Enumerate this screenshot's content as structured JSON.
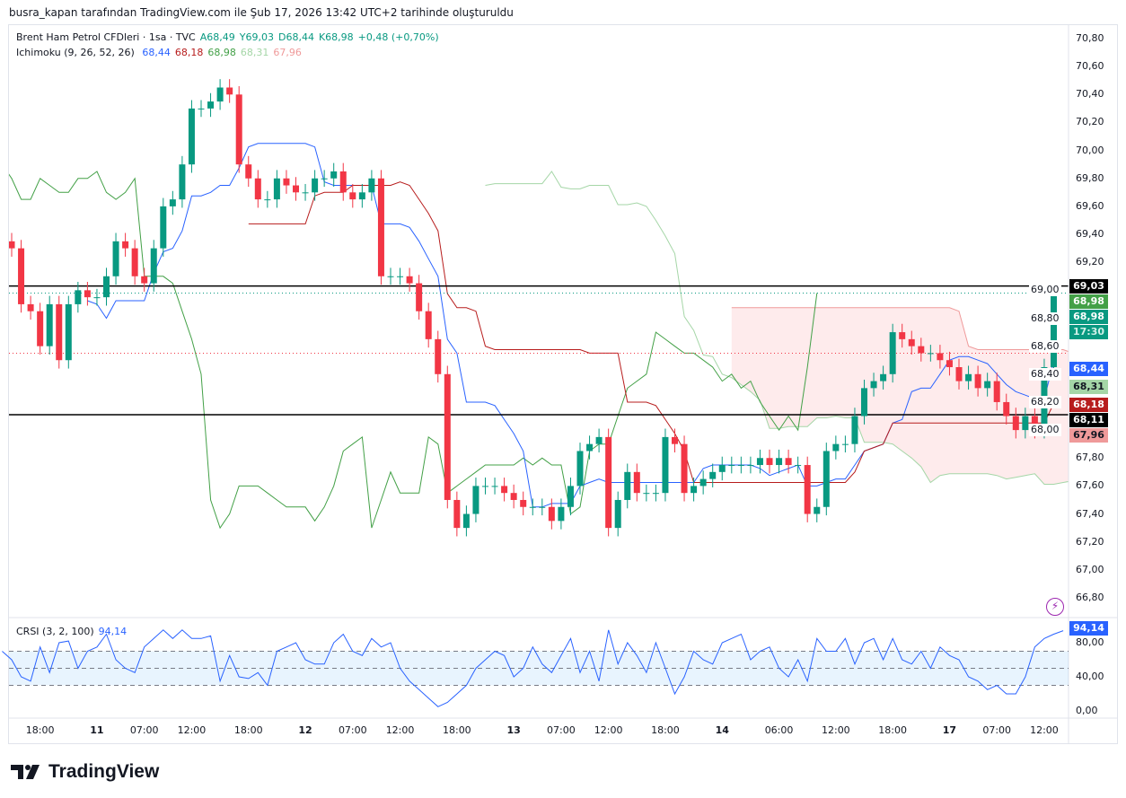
{
  "caption": "busra_kapan tarafından TradingView.com ile Şub 17, 2026 13:42 UTC+2 tarihinde oluşturuldu",
  "legend": {
    "symbol": "Brent Ham Petrol CFDleri · 1sa · TVC",
    "open": "A68,49",
    "high": "Y69,03",
    "low": "D68,44",
    "close": "K68,98",
    "change": "+0,48 (+0,70%)",
    "ichimoku_label": "Ichimoku (9, 26, 52, 26)",
    "ichimoku_values": [
      {
        "v": "68,44",
        "c": "#2962ff"
      },
      {
        "v": "68,18",
        "c": "#b71c1c"
      },
      {
        "v": "68,98",
        "c": "#43a047"
      },
      {
        "v": "68,31",
        "c": "#a5d6a7"
      },
      {
        "v": "67,96",
        "c": "#ef9a9a"
      }
    ],
    "crsi_label": "CRSI (3, 2, 100)",
    "crsi_value": "94,14"
  },
  "colors": {
    "up": "#089981",
    "down": "#f23645",
    "tenkan": "#2962ff",
    "kijun": "#b71c1c",
    "lagging": "#43a047",
    "spanA": "#a5d6a7",
    "spanB": "#ef9a9a",
    "crsi": "#2962ff"
  },
  "chart_data": {
    "type": "candlestick",
    "price_range": [
      66.8,
      70.8
    ],
    "ichimoku_params": [
      9,
      26,
      52,
      26
    ],
    "closes": [
      69.3,
      68.9,
      68.85,
      68.6,
      68.9,
      68.5,
      68.9,
      69.0,
      68.95,
      68.95,
      69.1,
      69.35,
      69.3,
      69.1,
      69.05,
      69.3,
      69.6,
      69.65,
      69.9,
      70.3,
      70.3,
      70.35,
      70.45,
      70.4,
      69.9,
      69.8,
      69.65,
      69.65,
      69.8,
      69.75,
      69.7,
      69.7,
      69.8,
      69.8,
      69.85,
      69.7,
      69.65,
      69.7,
      69.8,
      69.1,
      69.1,
      69.1,
      69.05,
      68.85,
      68.65,
      68.4,
      67.5,
      67.3,
      67.4,
      67.6,
      67.6,
      67.6,
      67.55,
      67.5,
      67.45,
      67.45,
      67.45,
      67.35,
      67.45,
      67.6,
      67.85,
      67.9,
      67.95,
      67.3,
      67.5,
      67.7,
      67.55,
      67.55,
      67.55,
      67.95,
      67.9,
      67.55,
      67.6,
      67.65,
      67.7,
      67.75,
      67.75,
      67.75,
      67.75,
      67.8,
      67.75,
      67.8,
      67.75,
      67.75,
      67.4,
      67.45,
      67.85,
      67.9,
      67.9,
      68.1,
      68.3,
      68.35,
      68.4,
      68.7,
      68.65,
      68.6,
      68.55,
      68.55,
      68.5,
      68.45,
      68.35,
      68.4,
      68.3,
      68.35,
      68.2,
      68.1,
      68.0,
      68.1,
      68.0,
      68.45,
      68.98
    ],
    "price_ticks": [
      "70,80",
      "70,60",
      "70,40",
      "70,20",
      "70,00",
      "69,80",
      "69,60",
      "69,40",
      "69,20",
      "69,00",
      "68,80",
      "68,60",
      "68,40",
      "68,20",
      "68,00",
      "67,80",
      "67,60",
      "67,40",
      "67,20",
      "67,00",
      "66,80"
    ],
    "hlines": [
      69.03,
      68.11
    ],
    "crsi": [
      70,
      60,
      40,
      35,
      75,
      45,
      80,
      82,
      50,
      70,
      75,
      90,
      60,
      50,
      45,
      75,
      85,
      95,
      85,
      95,
      85,
      85,
      88,
      35,
      65,
      40,
      38,
      45,
      30,
      70,
      75,
      80,
      60,
      55,
      55,
      80,
      90,
      70,
      65,
      85,
      75,
      80,
      50,
      35,
      25,
      15,
      5,
      10,
      20,
      30,
      50,
      60,
      70,
      65,
      40,
      50,
      75,
      55,
      45,
      65,
      85,
      45,
      70,
      35,
      95,
      55,
      80,
      65,
      45,
      80,
      50,
      20,
      40,
      70,
      60,
      55,
      80,
      85,
      90,
      60,
      70,
      75,
      50,
      40,
      60,
      35,
      85,
      70,
      70,
      85,
      55,
      80,
      85,
      60,
      85,
      60,
      55,
      70,
      50,
      75,
      65,
      60,
      40,
      35,
      25,
      30,
      20,
      20,
      40,
      75,
      85,
      90,
      94.14
    ],
    "crsi_ticks": [
      "80,00",
      "40,00",
      "0,00"
    ],
    "crsi_bands": [
      30,
      50,
      70
    ],
    "time_ticks": [
      {
        "i": 3,
        "t": "18:00"
      },
      {
        "i": 9,
        "t": "11",
        "bold": true
      },
      {
        "i": 14,
        "t": "07:00"
      },
      {
        "i": 19,
        "t": "12:00"
      },
      {
        "i": 25,
        "t": "18:00"
      },
      {
        "i": 31,
        "t": "12",
        "bold": true
      },
      {
        "i": 36,
        "t": "07:00"
      },
      {
        "i": 41,
        "t": "12:00"
      },
      {
        "i": 47,
        "t": "18:00"
      },
      {
        "i": 53,
        "t": "13",
        "bold": true
      },
      {
        "i": 58,
        "t": "07:00"
      },
      {
        "i": 63,
        "t": "12:00"
      },
      {
        "i": 69,
        "t": "18:00"
      },
      {
        "i": 75,
        "t": "14",
        "bold": true
      },
      {
        "i": 81,
        "t": "06:00"
      },
      {
        "i": 87,
        "t": "12:00"
      },
      {
        "i": 93,
        "t": "18:00"
      },
      {
        "i": 99,
        "t": "17",
        "bold": true
      },
      {
        "i": 104,
        "t": "07:00"
      },
      {
        "i": 109,
        "t": "12:00"
      }
    ]
  },
  "badges": [
    {
      "p": 69.03,
      "t": "69,03",
      "bg": "#000000",
      "fg": "#ffffff"
    },
    {
      "p": 68.98,
      "t": "68,98",
      "bg": "#43a047",
      "fg": "#ffffff"
    },
    {
      "p": 68.9,
      "t": "68,98",
      "bg": "#089981",
      "fg": "#ffffff"
    },
    {
      "p": 68.81,
      "t": "17:30",
      "bg": "#089981",
      "fg": "#d0f0e8"
    },
    {
      "p": 68.44,
      "t": "68,44",
      "bg": "#2962ff",
      "fg": "#ffffff"
    },
    {
      "p": 68.31,
      "t": "68,31",
      "bg": "#a5d6a7",
      "fg": "#131722"
    },
    {
      "p": 68.18,
      "t": "68,18",
      "bg": "#b71c1c",
      "fg": "#ffffff"
    },
    {
      "p": 68.11,
      "t": "68,11",
      "bg": "#000000",
      "fg": "#ffffff"
    },
    {
      "p": 67.96,
      "t": "67,96",
      "bg": "#ef9a9a",
      "fg": "#131722"
    }
  ],
  "brand": "TradingView"
}
